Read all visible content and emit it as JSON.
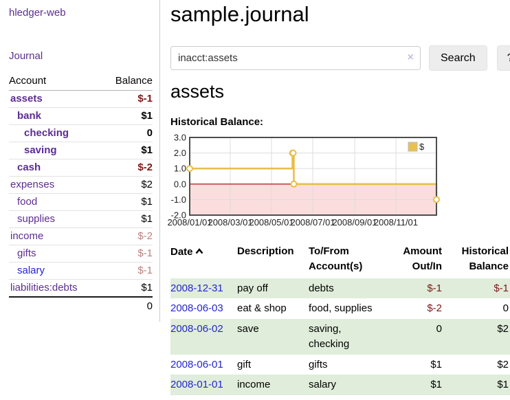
{
  "sidebar": {
    "brand": "hledger-web",
    "nav_journal": "Journal",
    "accounts": {
      "header_account": "Account",
      "header_balance": "Balance",
      "rows": [
        {
          "name": "assets",
          "depth": 0,
          "balance": "$-1",
          "matched": true,
          "balance_style": "neg-strong",
          "link_style": "purple"
        },
        {
          "name": "bank",
          "depth": 1,
          "balance": "$1",
          "matched": true,
          "balance_style": "",
          "link_style": "purple"
        },
        {
          "name": "checking",
          "depth": 2,
          "balance": "0",
          "matched": true,
          "balance_style": "",
          "link_style": "purple"
        },
        {
          "name": "saving",
          "depth": 2,
          "balance": "$1",
          "matched": true,
          "balance_style": "",
          "link_style": "purple"
        },
        {
          "name": "cash",
          "depth": 1,
          "balance": "$-2",
          "matched": true,
          "balance_style": "neg-strong",
          "link_style": "purple"
        },
        {
          "name": "expenses",
          "depth": 0,
          "balance": "$2",
          "matched": false,
          "balance_style": "",
          "link_style": "purple"
        },
        {
          "name": "food",
          "depth": 1,
          "balance": "$1",
          "matched": false,
          "balance_style": "",
          "link_style": "purple"
        },
        {
          "name": "supplies",
          "depth": 1,
          "balance": "$1",
          "matched": false,
          "balance_style": "",
          "link_style": "purple"
        },
        {
          "name": "income",
          "depth": 0,
          "balance": "$-2",
          "matched": false,
          "balance_style": "neg-soft",
          "link_style": "purple"
        },
        {
          "name": "gifts",
          "depth": 1,
          "balance": "$-1",
          "matched": false,
          "balance_style": "neg-soft",
          "link_style": "purple"
        },
        {
          "name": "salary",
          "depth": 1,
          "balance": "$-1",
          "matched": false,
          "balance_style": "neg-soft",
          "link_style": "blue"
        },
        {
          "name": "liabilities:debts",
          "depth": 0,
          "balance": "$1",
          "matched": false,
          "balance_style": "",
          "link_style": "purple"
        }
      ],
      "total": "0"
    }
  },
  "main": {
    "title": "sample.journal",
    "search": {
      "value": "inacct:assets",
      "clear_icon": "×",
      "search_button": "Search",
      "help_button": "?"
    },
    "account_heading": "assets",
    "chart_title": "Historical Balance:",
    "register": {
      "headers": [
        "Date",
        "Description",
        "To/From Account(s)",
        "Amount Out/In",
        "Historical Balance"
      ],
      "rows": [
        {
          "date": "2008-12-31",
          "description": "pay off",
          "accounts": "debts",
          "amount": "$-1",
          "balance": "$-1",
          "amount_neg": true,
          "balance_neg": true
        },
        {
          "date": "2008-06-03",
          "description": "eat & shop",
          "accounts": "food, supplies",
          "amount": "$-2",
          "balance": "0",
          "amount_neg": true,
          "balance_neg": false
        },
        {
          "date": "2008-06-02",
          "description": "save",
          "accounts": "saving, checking",
          "amount": "0",
          "balance": "$2",
          "amount_neg": false,
          "balance_neg": false
        },
        {
          "date": "2008-06-01",
          "description": "gift",
          "accounts": "gifts",
          "amount": "$1",
          "balance": "$2",
          "amount_neg": false,
          "balance_neg": false
        },
        {
          "date": "2008-01-01",
          "description": "income",
          "accounts": "salary",
          "amount": "$1",
          "balance": "$1",
          "amount_neg": false,
          "balance_neg": false
        }
      ]
    }
  },
  "chart_data": {
    "type": "line",
    "title": "Historical Balance",
    "step": true,
    "series": [
      {
        "name": "$",
        "points": [
          [
            "2008-01-01",
            1
          ],
          [
            "2008-06-01",
            2
          ],
          [
            "2008-06-02",
            2
          ],
          [
            "2008-06-03",
            0
          ],
          [
            "2008-12-31",
            -1
          ]
        ]
      }
    ],
    "x_range": [
      "2008-01-01",
      "2008-12-31"
    ],
    "ylim": [
      -2,
      3
    ],
    "y_ticks": [
      {
        "v": 3,
        "label": "3.0"
      },
      {
        "v": 2,
        "label": "2.0"
      },
      {
        "v": 1,
        "label": "1.0"
      },
      {
        "v": 0,
        "label": "0.0"
      },
      {
        "v": -1,
        "label": "-1.0"
      },
      {
        "v": -2,
        "label": "-2.0"
      }
    ],
    "x_ticks": [
      {
        "date": "2008-01-01",
        "label": "2008/01/01"
      },
      {
        "date": "2008-03-01",
        "label": "2008/03/01"
      },
      {
        "date": "2008-05-01",
        "label": "2008/05/01"
      },
      {
        "date": "2008-07-01",
        "label": "2008/07/01"
      },
      {
        "date": "2008-09-01",
        "label": "2008/09/01"
      },
      {
        "date": "2008-11-01",
        "label": "2008/11/01"
      }
    ],
    "legend": {
      "position": "top-right",
      "entries": [
        "$"
      ]
    },
    "grid": true,
    "colors": {
      "line": "#e8be4a",
      "marker_fill": "#ffffff",
      "negative_region": "#fbdddd",
      "zero_line": "#a40000",
      "border": "#4d4d4d",
      "grid": "#dddddd",
      "legend_swatch": "#e8c24d",
      "legend_swatch_border": "#bbbbbb"
    }
  }
}
